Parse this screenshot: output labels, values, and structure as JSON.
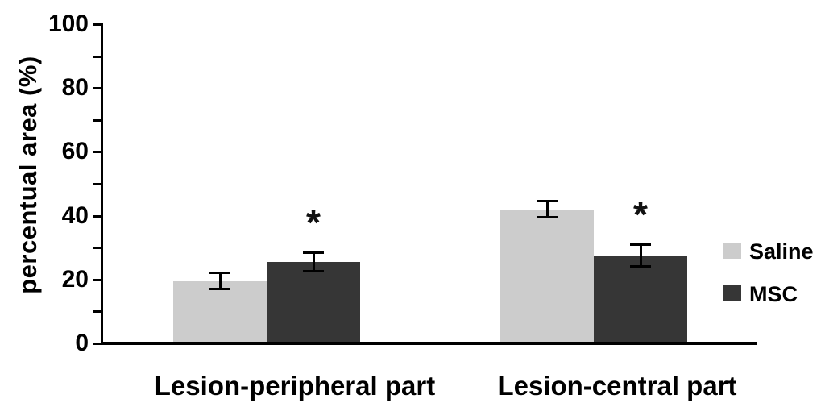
{
  "chart_data": {
    "type": "bar",
    "title": "",
    "xlabel": "",
    "ylabel": "percentual area (%)",
    "ylim": [
      0,
      100
    ],
    "yticks_labeled": [
      0,
      20,
      40,
      60,
      80,
      100
    ],
    "ytick_minor_step": 10,
    "grid": false,
    "categories": [
      "Lesion-peripheral part",
      "Lesion-central part"
    ],
    "series": [
      {
        "name": "Saline",
        "color": "#cccccc",
        "values": [
          19.5,
          42.0
        ],
        "errors": [
          2.5,
          2.5
        ],
        "significance": [
          "",
          ""
        ]
      },
      {
        "name": "MSC",
        "color": "#363636",
        "values": [
          25.5,
          27.5
        ],
        "errors": [
          3.0,
          3.5
        ],
        "significance": [
          "*",
          "*"
        ]
      }
    ],
    "legend": {
      "position": "right",
      "entries": [
        "Saline",
        "MSC"
      ]
    },
    "axis_color": "#000000",
    "error_bar_color": "#000000"
  }
}
